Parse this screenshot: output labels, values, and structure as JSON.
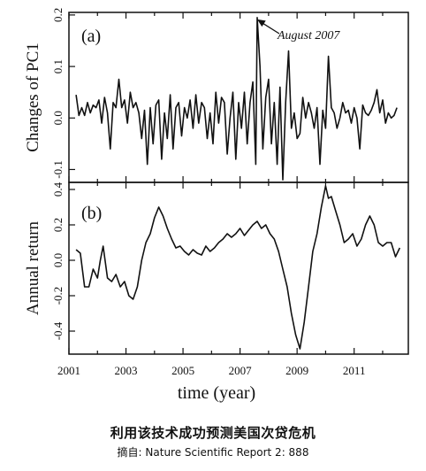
{
  "chart_data": [
    {
      "type": "line",
      "panel_label": "(a)",
      "ylabel": "Changes of PC1",
      "ylim": [
        -0.125,
        0.205
      ],
      "yticks": [
        {
          "value": 0.2,
          "label": "0.2"
        },
        {
          "value": 0.1,
          "label": "0.1"
        },
        {
          "value": 0.0,
          "label": "0.0"
        },
        {
          "value": -0.1,
          "label": "-0.1"
        }
      ],
      "xlim": [
        2001.0,
        2012.9
      ],
      "annotation": {
        "text": "August 2007",
        "x": 2007.6,
        "y": 0.195
      },
      "series": [
        {
          "x": [
            2001.25,
            2001.35,
            2001.45,
            2001.55,
            2001.65,
            2001.75,
            2001.85,
            2001.95,
            2002.05,
            2002.15,
            2002.25,
            2002.35,
            2002.45,
            2002.55,
            2002.65,
            2002.75,
            2002.85,
            2002.95,
            2003.05,
            2003.15,
            2003.25,
            2003.35,
            2003.45,
            2003.55,
            2003.65,
            2003.75,
            2003.85,
            2003.95,
            2004.05,
            2004.15,
            2004.25,
            2004.35,
            2004.45,
            2004.55,
            2004.65,
            2004.75,
            2004.85,
            2004.95,
            2005.05,
            2005.15,
            2005.25,
            2005.35,
            2005.45,
            2005.55,
            2005.65,
            2005.75,
            2005.85,
            2005.95,
            2006.05,
            2006.15,
            2006.25,
            2006.35,
            2006.45,
            2006.55,
            2006.65,
            2006.75,
            2006.85,
            2006.95,
            2007.05,
            2007.15,
            2007.25,
            2007.35,
            2007.45,
            2007.55,
            2007.6,
            2007.7,
            2007.8,
            2007.9,
            2008.0,
            2008.1,
            2008.2,
            2008.3,
            2008.4,
            2008.5,
            2008.6,
            2008.7,
            2008.8,
            2008.9,
            2009.0,
            2009.1,
            2009.2,
            2009.3,
            2009.4,
            2009.5,
            2009.6,
            2009.7,
            2009.8,
            2009.9,
            2010.0,
            2010.1,
            2010.2,
            2010.3,
            2010.4,
            2010.5,
            2010.6,
            2010.7,
            2010.8,
            2010.9,
            2011.0,
            2011.1,
            2011.2,
            2011.3,
            2011.4,
            2011.5,
            2011.6,
            2011.7,
            2011.8,
            2011.9,
            2012.0,
            2012.1,
            2012.2,
            2012.3,
            2012.4,
            2012.5
          ],
          "y": [
            0.045,
            0.005,
            0.02,
            0.005,
            0.03,
            0.01,
            0.025,
            0.02,
            0.035,
            -0.01,
            0.04,
            0.01,
            -0.06,
            0.03,
            0.02,
            0.075,
            0.02,
            0.035,
            -0.01,
            0.05,
            0.02,
            0.03,
            0.01,
            -0.04,
            0.015,
            -0.09,
            0.02,
            -0.05,
            0.025,
            0.035,
            -0.08,
            0.01,
            -0.04,
            0.045,
            -0.06,
            0.02,
            0.03,
            -0.035,
            0.02,
            0.0,
            0.035,
            -0.02,
            0.045,
            -0.01,
            0.03,
            0.02,
            -0.04,
            0.01,
            -0.05,
            0.05,
            -0.01,
            0.04,
            0.03,
            -0.07,
            0.0,
            0.05,
            -0.08,
            0.03,
            -0.02,
            0.05,
            -0.05,
            0.03,
            0.07,
            -0.09,
            0.195,
            0.1,
            -0.06,
            0.04,
            0.075,
            -0.05,
            0.03,
            -0.09,
            0.06,
            -0.12,
            0.03,
            0.13,
            -0.02,
            0.01,
            -0.04,
            -0.03,
            0.04,
            0.0,
            0.03,
            0.01,
            -0.02,
            0.02,
            -0.09,
            0.015,
            -0.02,
            0.12,
            0.02,
            0.01,
            -0.02,
            0.0,
            0.03,
            0.01,
            0.015,
            -0.01,
            0.02,
            0.0,
            -0.06,
            0.025,
            0.01,
            0.005,
            0.015,
            0.03,
            0.055,
            0.01,
            0.035,
            -0.01,
            0.01,
            0.0,
            0.005,
            0.02
          ]
        }
      ]
    },
    {
      "type": "line",
      "panel_label": "(b)",
      "ylabel": "Annual return",
      "ylim": [
        -0.53,
        0.44
      ],
      "yticks": [
        {
          "value": 0.4,
          "label": "0.4"
        },
        {
          "value": 0.2,
          "label": "0.2"
        },
        {
          "value": 0.0,
          "label": "0.0"
        },
        {
          "value": -0.2,
          "label": "-0.2"
        },
        {
          "value": -0.4,
          "label": "-0.4"
        }
      ],
      "xlim": [
        2001.0,
        2012.9
      ],
      "xlabel": "time (year)",
      "xticks": [
        {
          "value": 2001,
          "label": "2001"
        },
        {
          "value": 2003,
          "label": "2003"
        },
        {
          "value": 2005,
          "label": "2005"
        },
        {
          "value": 2007,
          "label": "2007"
        },
        {
          "value": 2009,
          "label": "2009"
        },
        {
          "value": 2011,
          "label": "2011"
        }
      ],
      "series": [
        {
          "x": [
            2001.25,
            2001.4,
            2001.55,
            2001.7,
            2001.85,
            2002.0,
            2002.1,
            2002.2,
            2002.35,
            2002.5,
            2002.65,
            2002.8,
            2002.95,
            2003.1,
            2003.25,
            2003.4,
            2003.55,
            2003.7,
            2003.85,
            2004.0,
            2004.15,
            2004.3,
            2004.45,
            2004.6,
            2004.75,
            2004.9,
            2005.05,
            2005.2,
            2005.35,
            2005.5,
            2005.65,
            2005.8,
            2005.95,
            2006.1,
            2006.25,
            2006.4,
            2006.55,
            2006.7,
            2006.85,
            2007.0,
            2007.15,
            2007.3,
            2007.45,
            2007.6,
            2007.75,
            2007.9,
            2008.05,
            2008.2,
            2008.35,
            2008.5,
            2008.65,
            2008.8,
            2008.95,
            2009.1,
            2009.25,
            2009.4,
            2009.55,
            2009.7,
            2009.85,
            2010.0,
            2010.1,
            2010.2,
            2010.35,
            2010.5,
            2010.65,
            2010.8,
            2010.95,
            2011.1,
            2011.25,
            2011.4,
            2011.55,
            2011.7,
            2011.85,
            2012.0,
            2012.15,
            2012.3,
            2012.45,
            2012.6
          ],
          "y": [
            0.06,
            0.04,
            -0.15,
            -0.15,
            -0.05,
            -0.1,
            0.0,
            0.08,
            -0.1,
            -0.12,
            -0.08,
            -0.15,
            -0.12,
            -0.2,
            -0.22,
            -0.15,
            0.0,
            0.1,
            0.15,
            0.24,
            0.3,
            0.25,
            0.18,
            0.12,
            0.07,
            0.08,
            0.05,
            0.03,
            0.06,
            0.04,
            0.03,
            0.08,
            0.05,
            0.07,
            0.1,
            0.12,
            0.15,
            0.13,
            0.15,
            0.18,
            0.14,
            0.17,
            0.2,
            0.22,
            0.18,
            0.2,
            0.15,
            0.12,
            0.05,
            -0.05,
            -0.15,
            -0.3,
            -0.42,
            -0.5,
            -0.35,
            -0.15,
            0.05,
            0.15,
            0.3,
            0.42,
            0.35,
            0.36,
            0.28,
            0.2,
            0.1,
            0.12,
            0.15,
            0.08,
            0.12,
            0.2,
            0.25,
            0.2,
            0.1,
            0.08,
            0.1,
            0.1,
            0.02,
            0.07
          ]
        }
      ]
    }
  ],
  "caption": {
    "title": "利用该技术成功预测美国次贷危机",
    "source": "摘自: Nature Scientific Report 2: 888"
  }
}
